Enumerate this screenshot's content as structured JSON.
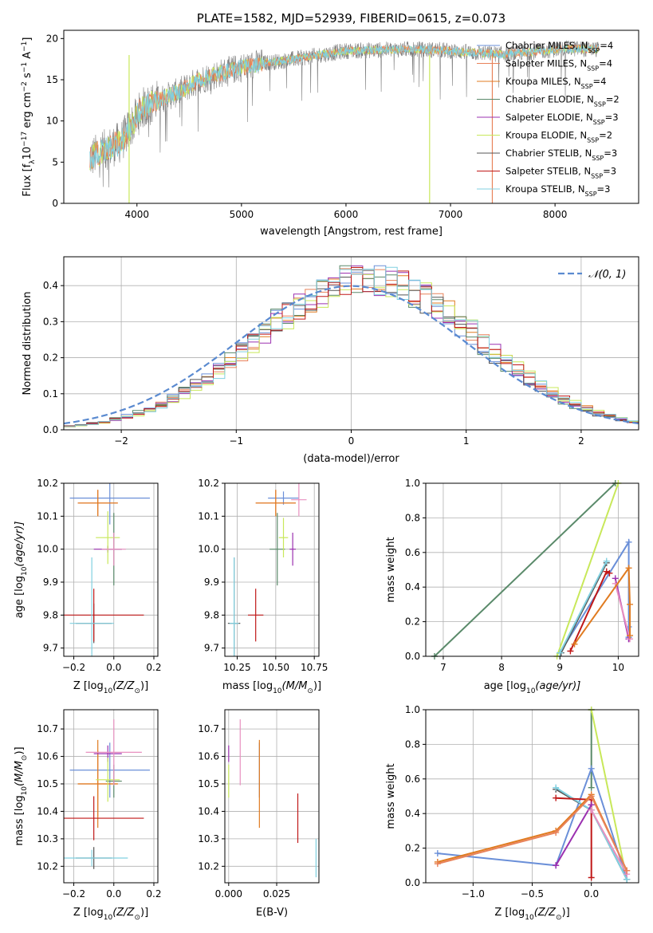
{
  "colors": {
    "chabrier_miles": "#6a8fd8",
    "salpeter_miles": "#e8825a",
    "kroupa_miles": "#e07b20",
    "chabrier_elodie": "#5a8a6a",
    "salpeter_elodie": "#9b30b0",
    "kroupa_elodie": "#c8e85a",
    "chabrier_stelib": "#555555",
    "salpeter_stelib": "#c01818",
    "kroupa_stelib": "#80d0e0",
    "pink": "#e890c0",
    "spectrum": "#808080",
    "gauss": "#5a8ad0",
    "grid": "#b0b0b0"
  },
  "chart_data": [
    {
      "id": "spectrum",
      "type": "line",
      "title": "PLATE=1582, MJD=52939, FIBERID=0615, z=0.073",
      "xlabel": "wavelength [Angstrom, rest frame]",
      "ylabel": "Flux [f",
      "ylabel_parts": [
        "Flux [f",
        "λ",
        "10",
        "−17",
        " erg cm",
        "−2",
        " s",
        "−1",
        " A",
        "−1",
        "]"
      ],
      "xlim": [
        3300,
        8800
      ],
      "ylim": [
        0,
        21
      ],
      "xticks": [
        4000,
        5000,
        6000,
        7000,
        8000
      ],
      "yticks": [
        0,
        5,
        10,
        15,
        20
      ],
      "grid": false,
      "legend_position": "right",
      "continuum": {
        "x": [
          3550,
          3700,
          3850,
          3950,
          4050,
          4200,
          4400,
          4600,
          4800,
          5000,
          5200,
          5400,
          5600,
          5800,
          6000,
          6300,
          6600,
          6900,
          7200,
          7500,
          7800,
          8100,
          8400,
          8800
        ],
        "y": [
          5.5,
          6.5,
          7.5,
          9.5,
          11.5,
          12.5,
          13.5,
          15,
          15.8,
          16.5,
          17,
          17.3,
          17.7,
          18.1,
          18.5,
          18.6,
          18.7,
          18.6,
          18.3,
          18.1,
          18.4,
          18.8,
          18.7,
          18.6
        ]
      },
      "legend": [
        {
          "label": "Chabrier MILES, N",
          "sub": "SSP",
          "value": "=4",
          "color_key": "chabrier_miles"
        },
        {
          "label": "Salpeter MILES, N",
          "sub": "SSP",
          "value": "=4",
          "color_key": "salpeter_miles"
        },
        {
          "label": "Kroupa MILES, N",
          "sub": "SSP",
          "value": "=4",
          "color_key": "kroupa_miles"
        },
        {
          "label": "Chabrier ELODIE, N",
          "sub": "SSP",
          "value": "=2",
          "color_key": "chabrier_elodie"
        },
        {
          "label": "Salpeter ELODIE, N",
          "sub": "SSP",
          "value": "=3",
          "color_key": "salpeter_elodie"
        },
        {
          "label": "Kroupa ELODIE, N",
          "sub": "SSP",
          "value": "=2",
          "color_key": "kroupa_elodie"
        },
        {
          "label": "Chabrier STELIB, N",
          "sub": "SSP",
          "value": "=3",
          "color_key": "chabrier_stelib"
        },
        {
          "label": "Salpeter STELIB, N",
          "sub": "SSP",
          "value": "=3",
          "color_key": "salpeter_stelib"
        },
        {
          "label": "Kroupa STELIB, N",
          "sub": "SSP",
          "value": "=3",
          "color_key": "kroupa_stelib"
        }
      ]
    },
    {
      "id": "residuals",
      "type": "line",
      "xlabel": "(data-model)/error",
      "ylabel": "Normed distribution",
      "xlim": [
        -2.5,
        2.5
      ],
      "ylim": [
        0,
        0.48
      ],
      "xticks": [
        -2,
        -1,
        0,
        1,
        2
      ],
      "xticklabels": [
        "−2",
        "−1",
        "0",
        "1",
        "2"
      ],
      "yticks": [
        0.0,
        0.1,
        0.2,
        0.3,
        0.4
      ],
      "yticklabels": [
        "0.0",
        "0.1",
        "0.2",
        "0.3",
        "0.4"
      ],
      "grid": true,
      "legend_position": "top-right",
      "legend": [
        {
          "label": "𝒩(0, 1)",
          "color_key": "gauss"
        }
      ],
      "bin_width": 0.1,
      "gauss": {
        "mean": 0,
        "sigma": 1
      }
    },
    {
      "id": "age_vs_Z",
      "type": "scatter",
      "xlabel": "Z [log",
      "xlabel_parts": [
        "Z [log",
        "10",
        "(Z/Z",
        "⊙",
        ")]"
      ],
      "ylabel_parts": [
        "age  [log",
        "10",
        "(age/yr)]"
      ],
      "xlim": [
        -0.25,
        0.22
      ],
      "ylim": [
        9.675,
        10.2
      ],
      "xticks": [
        -0.2,
        0.0,
        0.2
      ],
      "xticklabels": [
        "−0.2",
        "0.0",
        "0.2"
      ],
      "yticks": [
        9.7,
        9.8,
        9.9,
        10.0,
        10.1,
        10.2
      ],
      "yticklabels": [
        "9.7",
        "9.8",
        "9.9",
        "10.0",
        "10.1",
        "10.2"
      ],
      "grid": true,
      "points": [
        {
          "x": -0.02,
          "y": 10.155,
          "xerr": 0.2,
          "yerr": 0.08,
          "color_key": "chabrier_miles"
        },
        {
          "x": -0.08,
          "y": 10.14,
          "xerr": 0.1,
          "yerr": 0.04,
          "color_key": "salpeter_miles"
        },
        {
          "x": -0.08,
          "y": 10.14,
          "xerr": 0.1,
          "yerr": 0.04,
          "color_key": "kroupa_miles"
        },
        {
          "x": 0.0,
          "y": 10.0,
          "xerr": 0.04,
          "yerr": 0.11,
          "color_key": "chabrier_elodie"
        },
        {
          "x": -0.03,
          "y": 10.0,
          "xerr": 0.07,
          "yerr": 0.01,
          "color_key": "salpeter_elodie"
        },
        {
          "x": -0.03,
          "y": 10.035,
          "xerr": 0.06,
          "yerr": 0.08,
          "color_key": "kroupa_elodie"
        },
        {
          "x": -0.1,
          "y": 9.775,
          "xerr": 0.09,
          "yerr": 0.06,
          "color_key": "chabrier_stelib"
        },
        {
          "x": -0.1,
          "y": 9.8,
          "xerr": 0.25,
          "yerr": 0.08,
          "color_key": "salpeter_stelib"
        },
        {
          "x": -0.11,
          "y": 9.775,
          "xerr": 0.11,
          "yerr": 0.2,
          "color_key": "kroupa_stelib"
        },
        {
          "x": 0.0,
          "y": 10.0,
          "xerr": 0.06,
          "yerr": 0.05,
          "color_key": "pink"
        }
      ]
    },
    {
      "id": "age_vs_mass",
      "type": "scatter",
      "xlabel_parts": [
        "mass [log",
        "10",
        "(M/M",
        "⊙",
        ")]"
      ],
      "xlim": [
        10.17,
        10.78
      ],
      "ylim": [
        9.675,
        10.2
      ],
      "xticks": [
        10.25,
        10.5,
        10.75
      ],
      "xticklabels": [
        "10.25",
        "10.50",
        "10.75"
      ],
      "yticks": [
        9.7,
        9.8,
        9.9,
        10.0,
        10.1,
        10.2
      ],
      "yticklabels": [
        "9.7",
        "9.8",
        "9.9",
        "10.0",
        "10.1",
        "10.2"
      ],
      "grid": true,
      "points": [
        {
          "x": 10.55,
          "y": 10.155,
          "xerr": 0.1,
          "yerr": 0.02,
          "color_key": "chabrier_miles"
        },
        {
          "x": 10.5,
          "y": 10.14,
          "xerr": 0.13,
          "yerr": 0.04,
          "color_key": "salpeter_miles"
        },
        {
          "x": 10.5,
          "y": 10.14,
          "xerr": 0.13,
          "yerr": 0.04,
          "color_key": "kroupa_miles"
        },
        {
          "x": 10.51,
          "y": 10.0,
          "xerr": 0.05,
          "yerr": 0.11,
          "color_key": "chabrier_elodie"
        },
        {
          "x": 10.61,
          "y": 10.0,
          "xerr": 0.02,
          "yerr": 0.05,
          "color_key": "salpeter_elodie"
        },
        {
          "x": 10.55,
          "y": 10.035,
          "xerr": 0.03,
          "yerr": 0.06,
          "color_key": "kroupa_elodie"
        },
        {
          "x": 10.23,
          "y": 9.775,
          "xerr": 0.04,
          "yerr": 0.2,
          "color_key": "chabrier_stelib"
        },
        {
          "x": 10.37,
          "y": 9.8,
          "xerr": 0.05,
          "yerr": 0.08,
          "color_key": "salpeter_stelib"
        },
        {
          "x": 10.23,
          "y": 9.775,
          "xerr": 0.03,
          "yerr": 0.2,
          "color_key": "kroupa_stelib"
        },
        {
          "x": 10.65,
          "y": 10.15,
          "xerr": 0.05,
          "yerr": 0.05,
          "color_key": "pink"
        }
      ]
    },
    {
      "id": "weight_vs_age",
      "type": "line",
      "xlabel_parts": [
        "age  [log",
        "10",
        "(age/yr)]"
      ],
      "ylabel": "mass weight",
      "xlim": [
        6.7,
        10.35
      ],
      "ylim": [
        0,
        1.0
      ],
      "xticks": [
        7,
        8,
        9,
        10
      ],
      "xticklabels": [
        "7",
        "8",
        "9",
        "10"
      ],
      "yticks": [
        0.0,
        0.2,
        0.4,
        0.6,
        0.8,
        1.0
      ],
      "yticklabels": [
        "0.0",
        "0.2",
        "0.4",
        "0.6",
        "0.8",
        "1.0"
      ],
      "grid": true,
      "series": [
        {
          "color_key": "chabrier_elodie",
          "x": [
            6.85,
            9.95
          ],
          "y": [
            0.0,
            1.0
          ]
        },
        {
          "color_key": "kroupa_elodie",
          "x": [
            8.95,
            10.0
          ],
          "y": [
            0.0,
            1.0
          ]
        },
        {
          "color_key": "chabrier_miles",
          "x": [
            9.0,
            10.18,
            10.18,
            10.18
          ],
          "y": [
            0.02,
            0.66,
            0.17,
            0.11
          ]
        },
        {
          "color_key": "chabrier_stelib",
          "x": [
            9.02,
            9.8
          ],
          "y": [
            0.02,
            0.54
          ]
        },
        {
          "color_key": "kroupa_stelib",
          "x": [
            9.0,
            9.8
          ],
          "y": [
            0.02,
            0.55
          ]
        },
        {
          "color_key": "salpeter_stelib",
          "x": [
            9.18,
            9.8,
            9.85
          ],
          "y": [
            0.03,
            0.49,
            0.48
          ]
        },
        {
          "color_key": "salpeter_elodie",
          "x": [
            9.95,
            10.18,
            10.18
          ],
          "y": [
            0.45,
            0.1,
            0.1
          ]
        },
        {
          "color_key": "pink",
          "x": [
            9.95,
            10.2
          ],
          "y": [
            0.42,
            0.1
          ]
        },
        {
          "color_key": "kroupa_miles",
          "x": [
            9.25,
            10.18,
            10.2,
            10.2
          ],
          "y": [
            0.07,
            0.51,
            0.3,
            0.12
          ]
        }
      ]
    },
    {
      "id": "mass_vs_Z",
      "type": "scatter",
      "xlabel_parts": [
        "Z [log",
        "10",
        "(Z/Z",
        "⊙",
        ")]"
      ],
      "ylabel_parts": [
        "mass [log",
        "10",
        "(M/M",
        "⊙",
        ")]"
      ],
      "xlim": [
        -0.25,
        0.22
      ],
      "ylim": [
        10.14,
        10.77
      ],
      "xticks": [
        -0.2,
        0.0,
        0.2
      ],
      "xticklabels": [
        "−0.2",
        "0.0",
        "0.2"
      ],
      "yticks": [
        10.2,
        10.3,
        10.4,
        10.5,
        10.6,
        10.7
      ],
      "yticklabels": [
        "10.2",
        "10.3",
        "10.4",
        "10.5",
        "10.6",
        "10.7"
      ],
      "grid": true,
      "points": [
        {
          "x": -0.02,
          "y": 10.55,
          "xerr": 0.2,
          "yerr": 0.1,
          "color_key": "chabrier_miles"
        },
        {
          "x": -0.08,
          "y": 10.5,
          "xerr": 0.1,
          "yerr": 0.12,
          "color_key": "salpeter_miles"
        },
        {
          "x": -0.08,
          "y": 10.5,
          "xerr": 0.1,
          "yerr": 0.16,
          "color_key": "kroupa_miles"
        },
        {
          "x": 0.0,
          "y": 10.51,
          "xerr": 0.04,
          "yerr": 0.06,
          "color_key": "chabrier_elodie"
        },
        {
          "x": -0.03,
          "y": 10.61,
          "xerr": 0.07,
          "yerr": 0.03,
          "color_key": "salpeter_elodie"
        },
        {
          "x": -0.03,
          "y": 10.515,
          "xerr": 0.06,
          "yerr": 0.08,
          "color_key": "kroupa_elodie"
        },
        {
          "x": -0.1,
          "y": 10.23,
          "xerr": 0.09,
          "yerr": 0.04,
          "color_key": "chabrier_stelib"
        },
        {
          "x": -0.1,
          "y": 10.375,
          "xerr": 0.25,
          "yerr": 0.08,
          "color_key": "salpeter_stelib"
        },
        {
          "x": -0.11,
          "y": 10.23,
          "xerr": 0.18,
          "yerr": 0.03,
          "color_key": "kroupa_stelib"
        },
        {
          "x": 0.0,
          "y": 10.615,
          "xerr": 0.14,
          "yerr": 0.12,
          "color_key": "pink"
        }
      ]
    },
    {
      "id": "mass_vs_ebv",
      "type": "scatter",
      "xlabel": "E(B-V)",
      "xlim": [
        -0.002,
        0.047
      ],
      "ylim": [
        10.14,
        10.77
      ],
      "xticks": [
        0.0,
        0.025
      ],
      "xticklabels": [
        "0.000",
        "0.025"
      ],
      "yticks": [
        10.2,
        10.3,
        10.4,
        10.5,
        10.6,
        10.7
      ],
      "yticklabels": [
        "10.2",
        "10.3",
        "10.4",
        "10.5",
        "10.6",
        "10.7"
      ],
      "grid": true,
      "points": [
        {
          "x": 0.016,
          "y": 10.55,
          "yerr": 0.1,
          "color_key": "chabrier_miles"
        },
        {
          "x": 0.016,
          "y": 10.5,
          "yerr": 0.16,
          "color_key": "kroupa_miles"
        },
        {
          "x": 0.0,
          "y": 10.51,
          "yerr": 0.06,
          "color_key": "kroupa_elodie"
        },
        {
          "x": 0.0,
          "y": 10.61,
          "yerr": 0.03,
          "color_key": "salpeter_elodie"
        },
        {
          "x": 0.036,
          "y": 10.375,
          "yerr": 0.09,
          "color_key": "salpeter_stelib"
        },
        {
          "x": 0.0455,
          "y": 10.23,
          "yerr": 0.07,
          "color_key": "kroupa_stelib"
        },
        {
          "x": 0.006,
          "y": 10.615,
          "yerr": 0.12,
          "color_key": "pink"
        }
      ]
    },
    {
      "id": "weight_vs_Z",
      "type": "line",
      "xlabel_parts": [
        "Z [log",
        "10",
        "(Z/Z",
        "⊙",
        ")]"
      ],
      "ylabel": "mass weight",
      "xlim": [
        -1.4,
        0.4
      ],
      "ylim": [
        0,
        1.0
      ],
      "xticks": [
        -1.0,
        -0.5,
        0.0
      ],
      "xticklabels": [
        "−1.0",
        "−0.5",
        "0.0"
      ],
      "yticks": [
        0.0,
        0.2,
        0.4,
        0.6,
        0.8,
        1.0
      ],
      "yticklabels": [
        "0.0",
        "0.2",
        "0.4",
        "0.6",
        "0.8",
        "1.0"
      ],
      "grid": true,
      "series": [
        {
          "color_key": "chabrier_elodie",
          "x": [
            0.0,
            0.0
          ],
          "y": [
            0.55,
            1.0
          ]
        },
        {
          "color_key": "kroupa_elodie",
          "x": [
            0.0,
            0.3
          ],
          "y": [
            1.0,
            0.02
          ]
        },
        {
          "color_key": "chabrier_miles",
          "x": [
            -1.3,
            -0.3,
            0.0,
            0.3
          ],
          "y": [
            0.17,
            0.1,
            0.66,
            0.02
          ]
        },
        {
          "color_key": "chabrier_stelib",
          "x": [
            -0.3,
            0.0,
            0.3
          ],
          "y": [
            0.54,
            0.42,
            0.02
          ]
        },
        {
          "color_key": "kroupa_stelib",
          "x": [
            -0.3,
            0.0,
            0.3
          ],
          "y": [
            0.55,
            0.42,
            0.02
          ]
        },
        {
          "color_key": "salpeter_stelib",
          "x": [
            -0.3,
            0.0,
            0.0
          ],
          "y": [
            0.49,
            0.48,
            0.03
          ]
        },
        {
          "color_key": "salpeter_elodie",
          "x": [
            -0.3,
            0.0,
            0.0
          ],
          "y": [
            0.1,
            0.45,
            0.45
          ]
        },
        {
          "color_key": "pink",
          "x": [
            0.0,
            0.3
          ],
          "y": [
            0.42,
            0.05
          ]
        },
        {
          "color_key": "kroupa_miles",
          "x": [
            -1.3,
            -0.3,
            0.0,
            0.3
          ],
          "y": [
            0.12,
            0.3,
            0.51,
            0.07
          ]
        },
        {
          "color_key": "salpeter_miles",
          "x": [
            -1.3,
            -0.3,
            0.0,
            0.3
          ],
          "y": [
            0.11,
            0.29,
            0.5,
            0.07
          ]
        }
      ]
    }
  ]
}
